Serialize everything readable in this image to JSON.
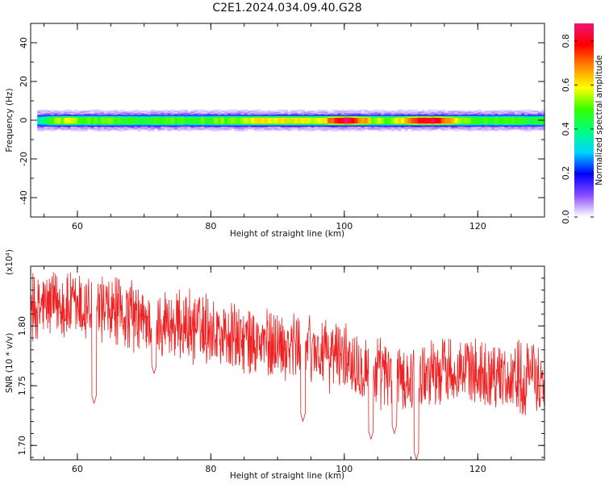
{
  "figure": {
    "title": "C2E1.2024.034.09.40.G28"
  },
  "chart_data": [
    {
      "type": "heatmap",
      "xlabel": "Height of straight line (km)",
      "ylabel": "Frequency (Hz)",
      "xlim": [
        53,
        130
      ],
      "ylim": [
        -50,
        50
      ],
      "x_ticks": [
        60,
        80,
        100,
        120
      ],
      "y_ticks": [
        -40,
        -20,
        0,
        20,
        40
      ],
      "x_tick_labels": [
        "60",
        "80",
        "100",
        "120"
      ],
      "y_tick_labels": [
        "-40",
        "-20",
        "0",
        "20",
        "40"
      ],
      "signal_start_km": 54,
      "band_half_width_hz": 3,
      "core_samples": {
        "x": [
          54,
          56,
          58,
          60,
          62,
          64,
          66,
          68,
          70,
          72,
          74,
          76,
          78,
          80,
          82,
          84,
          86,
          88,
          90,
          92,
          94,
          96,
          98,
          100,
          102,
          104,
          106,
          108,
          110,
          112,
          114,
          116,
          118,
          120,
          122,
          124,
          126,
          128,
          130
        ],
        "amplitude": [
          0.35,
          0.5,
          0.55,
          0.5,
          0.48,
          0.52,
          0.47,
          0.45,
          0.47,
          0.48,
          0.5,
          0.47,
          0.48,
          0.5,
          0.52,
          0.55,
          0.58,
          0.62,
          0.6,
          0.58,
          0.62,
          0.56,
          0.7,
          0.85,
          0.72,
          0.55,
          0.52,
          0.6,
          0.72,
          0.85,
          0.8,
          0.62,
          0.52,
          0.5,
          0.48,
          0.5,
          0.47,
          0.45,
          0.45
        ]
      },
      "colorbar": {
        "label": "Normalized spectral amplitude",
        "range": [
          0.0,
          0.88
        ],
        "ticks": [
          0.0,
          0.2,
          0.4,
          0.6,
          0.8
        ],
        "tick_labels": [
          "0.0",
          "0.2",
          "0.4",
          "0.6",
          "0.8"
        ],
        "colors": [
          "#ffffff",
          "#8a4dff",
          "#0000ff",
          "#00d4ff",
          "#00ff80",
          "#33ff00",
          "#ffff00",
          "#ff8800",
          "#ff0000",
          "#ee1577"
        ]
      }
    },
    {
      "type": "line",
      "xlabel": "Height of straight line (km)",
      "ylabel": "SNR (10 * v/v)",
      "y_exponent_label": "(x10⁴)",
      "xlim": [
        53,
        130
      ],
      "ylim": [
        1.688,
        1.85
      ],
      "x_ticks": [
        60,
        80,
        100,
        120
      ],
      "y_ticks": [
        1.7,
        1.75,
        1.8
      ],
      "x_tick_labels": [
        "60",
        "80",
        "100",
        "120"
      ],
      "y_tick_labels": [
        "1.70",
        "1.75",
        "1.80"
      ],
      "color": "#ee2222",
      "trend": {
        "x": [
          53,
          56,
          60,
          65,
          70,
          75,
          80,
          85,
          90,
          95,
          100,
          105,
          110,
          115,
          120,
          125,
          130
        ],
        "y": [
          1.812,
          1.818,
          1.815,
          1.81,
          1.805,
          1.8,
          1.797,
          1.787,
          1.785,
          1.78,
          1.775,
          1.76,
          1.755,
          1.765,
          1.762,
          1.758,
          1.755
        ]
      },
      "dips": {
        "x": [
          62.5,
          71.5,
          93.8,
          104,
          107.5,
          110.8
        ],
        "y": [
          1.735,
          1.76,
          1.72,
          1.705,
          1.71,
          1.688
        ]
      }
    }
  ]
}
